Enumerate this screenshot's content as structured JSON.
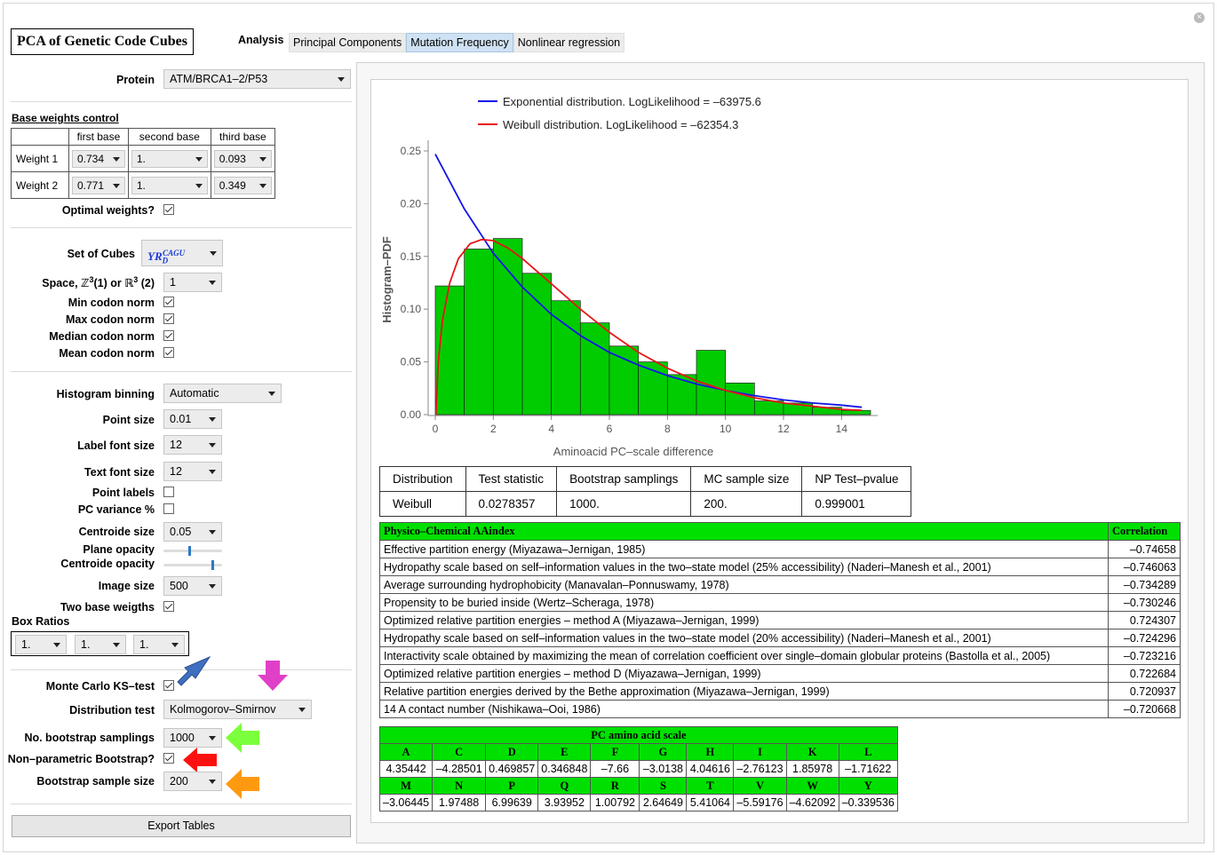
{
  "window": {
    "title": "PCA of Genetic Code Cubes"
  },
  "tabs": {
    "label": "Analysis",
    "items": [
      "Principal Components",
      "Mutation Frequency",
      "Nonlinear regression"
    ],
    "active": "Mutation Frequency"
  },
  "controls": {
    "protein": {
      "label": "Protein",
      "value": "ATM/BRCA1–2/P53"
    },
    "base_weights": {
      "heading": "Base weights control",
      "columns": [
        "first base",
        "second base",
        "third base"
      ],
      "rows": [
        {
          "label": "Weight 1",
          "values": [
            "0.734",
            "1.",
            "0.093"
          ]
        },
        {
          "label": "Weight 2",
          "values": [
            "0.771",
            "1.",
            "0.349"
          ]
        }
      ]
    },
    "optimal_weights": {
      "label": "Optimal weights?",
      "checked": true
    },
    "set_of_cubes": {
      "label": "Set of Cubes",
      "base": "YR",
      "sub": "D",
      "sup": "CAGU"
    },
    "space": {
      "label_pre": "Space, ",
      "z": "ℤ",
      "mid": "(1) or ",
      "r": "ℝ",
      "post": " (2)",
      "exp": "3",
      "value": "1"
    },
    "norms": [
      {
        "label": "Min codon norm",
        "checked": true
      },
      {
        "label": "Max codon norm",
        "checked": true
      },
      {
        "label": "Median codon norm",
        "checked": true
      },
      {
        "label": "Mean codon norm",
        "checked": true
      }
    ],
    "histogram_binning": {
      "label": "Histogram binning",
      "value": "Automatic"
    },
    "point_size": {
      "label": "Point size",
      "value": "0.01"
    },
    "label_font_size": {
      "label": "Label font size",
      "value": "12"
    },
    "text_font_size": {
      "label": "Text font size",
      "value": "12"
    },
    "point_labels": {
      "label": "Point labels",
      "checked": false
    },
    "pc_variance": {
      "label": "PC variance %",
      "checked": false
    },
    "centroide_size": {
      "label": "Centroide size",
      "value": "0.05"
    },
    "plane_opacity": {
      "label": "Plane opacity",
      "level": 0.45
    },
    "centroide_opacity": {
      "label": "Centroide opacity",
      "level": 0.85
    },
    "image_size": {
      "label": "Image size",
      "value": "500"
    },
    "two_base_weights": {
      "label": "Two base weigths",
      "checked": true
    },
    "box_ratios": {
      "label": "Box Ratios",
      "values": [
        "1.",
        "1.",
        "1."
      ]
    },
    "monte_carlo": {
      "label": "Monte Carlo KS–test",
      "checked": true
    },
    "distribution_test": {
      "label": "Distribution test",
      "value": "Kolmogorov–Smirnov"
    },
    "bootstrap_samplings": {
      "label": "No. bootstrap samplings",
      "value": "1000"
    },
    "nonparam_bootstrap": {
      "label": "Non–parametric Bootstrap?",
      "checked": true
    },
    "bootstrap_sample_size": {
      "label": "Bootstrap sample size",
      "value": "200"
    },
    "export_label": "Export Tables",
    "arrow_colors": {
      "blue": "#3f6fbf",
      "magenta": "#e040c8",
      "green": "#7cff3c",
      "red": "#ff1010",
      "orange": "#ff9a10"
    }
  },
  "chart_data": {
    "type": "bar",
    "xlabel": "Aminoacid PC–scale difference",
    "ylabel": "Histogram–PDF",
    "xlim": [
      0,
      15
    ],
    "ylim": [
      0,
      0.25
    ],
    "xticks": [
      0,
      2,
      4,
      6,
      8,
      10,
      12,
      14
    ],
    "yticks": [
      "0.00",
      "0.05",
      "0.10",
      "0.15",
      "0.20",
      "0.25"
    ],
    "bin_edges": [
      0,
      1,
      2,
      3,
      4,
      5,
      6,
      7,
      8,
      9,
      10,
      11,
      12,
      13,
      14,
      15
    ],
    "values": [
      0.122,
      0.157,
      0.167,
      0.134,
      0.108,
      0.087,
      0.065,
      0.05,
      0.038,
      0.061,
      0.03,
      0.013,
      0.011,
      0.007,
      0.004
    ],
    "bar_color": "#00cc00",
    "series": [
      {
        "name": "Exponential distribution. LogLikelihood = –63975.6",
        "color": "#1515e8",
        "x": [
          0,
          1,
          2,
          3,
          4,
          5,
          6,
          7,
          8,
          9,
          10,
          11,
          12,
          13,
          14,
          14.7
        ],
        "y": [
          0.247,
          0.195,
          0.153,
          0.121,
          0.095,
          0.075,
          0.059,
          0.047,
          0.037,
          0.029,
          0.023,
          0.018,
          0.014,
          0.011,
          0.009,
          0.007
        ]
      },
      {
        "name": "Weibull distribution. LogLikelihood = –62354.3",
        "color": "#e81515",
        "x": [
          0.02,
          0.1,
          0.25,
          0.5,
          0.8,
          1.2,
          1.6,
          2.0,
          2.5,
          3,
          4,
          5,
          6,
          7,
          8,
          9,
          10,
          11,
          12,
          13,
          14,
          14.7
        ],
        "y": [
          0.0,
          0.05,
          0.09,
          0.125,
          0.148,
          0.162,
          0.166,
          0.165,
          0.158,
          0.148,
          0.124,
          0.1,
          0.078,
          0.059,
          0.044,
          0.032,
          0.023,
          0.016,
          0.011,
          0.008,
          0.005,
          0.004
        ]
      }
    ]
  },
  "stats_table": {
    "headers": [
      "Distribution",
      "Test statistic",
      "Bootstrap samplings",
      "MC sample size",
      "NP Test–pvalue"
    ],
    "row": [
      "Weibull",
      "0.0278357",
      "1000.",
      "200.",
      "0.999001"
    ]
  },
  "aaindex_table": {
    "headers": [
      "Physico–Chemical AAindex",
      "Correlation"
    ],
    "rows": [
      [
        "Effective partition energy (Miyazawa–Jernigan, 1985)",
        "–0.74658"
      ],
      [
        "Hydropathy scale based on self–information values in the two–state model (25% accessibility) (Naderi–Manesh et al., 2001)",
        "–0.746063"
      ],
      [
        "Average surrounding hydrophobicity (Manavalan–Ponnuswamy, 1978)",
        "–0.734289"
      ],
      [
        "Propensity to be buried inside (Wertz–Scheraga, 1978)",
        "–0.730246"
      ],
      [
        "Optimized relative partition energies – method A (Miyazawa–Jernigan, 1999)",
        "0.724307"
      ],
      [
        "Hydropathy scale based on self–information values in the two–state model (20% accessibility) (Naderi–Manesh et al., 2001)",
        "–0.724296"
      ],
      [
        "Interactivity scale obtained by maximizing the mean of correlation coefficient over single–domain globular proteins (Bastolla et al., 2005)",
        "–0.723216"
      ],
      [
        "Optimized relative partition energies – method D (Miyazawa–Jernigan, 1999)",
        "0.722684"
      ],
      [
        "Relative partition energies derived by the Bethe approximation (Miyazawa–Jernigan, 1999)",
        "0.720937"
      ],
      [
        "14 A contact number (Nishikawa–Ooi, 1986)",
        "–0.720668"
      ]
    ]
  },
  "pc_scale": {
    "title": "PC amino acid scale",
    "letters1": [
      "A",
      "C",
      "D",
      "E",
      "F",
      "G",
      "H",
      "I",
      "K",
      "L"
    ],
    "values1": [
      "4.35442",
      "–4.28501",
      "0.469857",
      "0.346848",
      "–7.66",
      "–3.0138",
      "4.04616",
      "–2.76123",
      "1.85978",
      "–1.71622"
    ],
    "letters2": [
      "M",
      "N",
      "P",
      "Q",
      "R",
      "S",
      "T",
      "V",
      "W",
      "Y"
    ],
    "values2": [
      "–3.06445",
      "1.97488",
      "6.99639",
      "3.93952",
      "1.00792",
      "2.64649",
      "5.41064",
      "–5.59176",
      "–4.62092",
      "–0.339536"
    ]
  }
}
